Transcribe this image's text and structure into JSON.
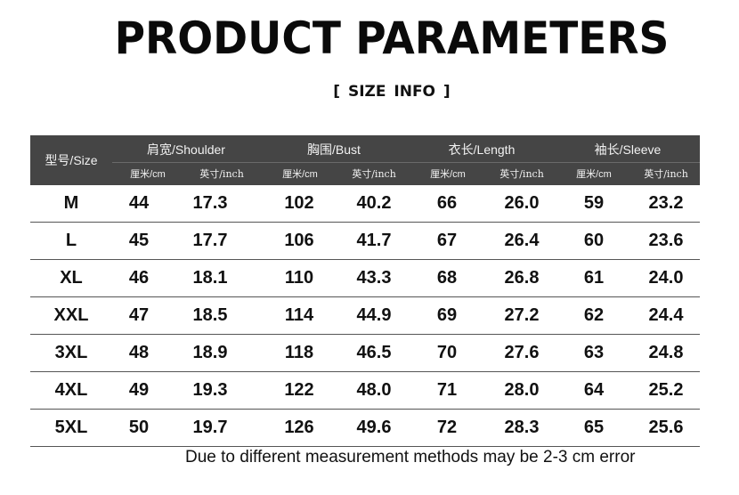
{
  "title": "PRODUCT PARAMETERS",
  "subtitle": "[ SIZE  INFO ]",
  "table": {
    "size_header": "型号/Size",
    "groups": [
      {
        "label": "肩宽/Shoulder",
        "cm": "厘米/cm",
        "inch": "英寸/inch"
      },
      {
        "label": "胸围/Bust",
        "cm": "厘米/cm",
        "inch": "英寸/inch"
      },
      {
        "label": "衣长/Length",
        "cm": "厘米/cm",
        "inch": "英寸/inch"
      },
      {
        "label": "袖长/Sleeve",
        "cm": "厘米/cm",
        "inch": "英寸/inch"
      }
    ],
    "rows": [
      [
        "M",
        "44",
        "17.3",
        "102",
        "40.2",
        "66",
        "26.0",
        "59",
        "23.2"
      ],
      [
        "L",
        "45",
        "17.7",
        "106",
        "41.7",
        "67",
        "26.4",
        "60",
        "23.6"
      ],
      [
        "XL",
        "46",
        "18.1",
        "110",
        "43.3",
        "68",
        "26.8",
        "61",
        "24.0"
      ],
      [
        "XXL",
        "47",
        "18.5",
        "114",
        "44.9",
        "69",
        "27.2",
        "62",
        "24.4"
      ],
      [
        "3XL",
        "48",
        "18.9",
        "118",
        "46.5",
        "70",
        "27.6",
        "63",
        "24.8"
      ],
      [
        "4XL",
        "49",
        "19.3",
        "122",
        "48.0",
        "71",
        "28.0",
        "64",
        "25.2"
      ],
      [
        "5XL",
        "50",
        "19.7",
        "126",
        "49.6",
        "72",
        "28.3",
        "65",
        "25.6"
      ]
    ]
  },
  "note": "Due to different measurement methods may be 2-3 cm error",
  "colors": {
    "header_bg": "#454545",
    "header_text": "#f2f2f2",
    "row_line": "#555555"
  }
}
